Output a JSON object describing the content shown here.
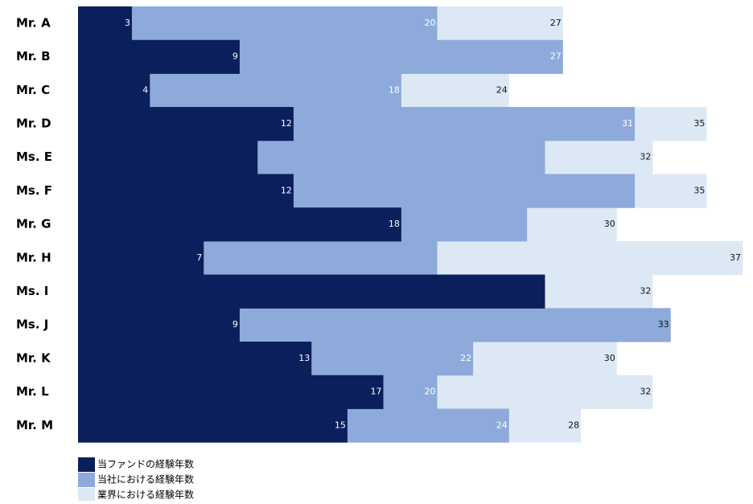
{
  "chart_data": {
    "type": "overlap-bar",
    "categories": [
      "Mr. A",
      "Mr. B",
      "Mr. C",
      "Mr. D",
      "Ms. E",
      "Ms. F",
      "Mr. G",
      "Mr. H",
      "Ms. I",
      "Ms. J",
      "Mr. K",
      "Mr. L",
      "Mr. M"
    ],
    "series": [
      {
        "name": "業界における経験年数",
        "color": "#dde8f5",
        "label_color": "#111111",
        "values": [
          27,
          27,
          24,
          35,
          32,
          35,
          30,
          37,
          32,
          33,
          30,
          32,
          28
        ],
        "value_labels": [
          "27",
          null,
          "24",
          "35",
          "32",
          "35",
          "30",
          "37",
          "32",
          "33",
          "30",
          "32",
          "28"
        ]
      },
      {
        "name": "当社における経験年数",
        "color": "#8eaadb",
        "label_color": "#ffffff",
        "values": [
          20,
          27,
          18,
          31,
          26,
          31,
          25,
          20,
          26,
          33,
          22,
          20,
          24
        ],
        "value_labels": [
          "20",
          "27",
          "18",
          "31",
          null,
          null,
          null,
          null,
          null,
          null,
          "22",
          "20",
          "24"
        ]
      },
      {
        "name": "当ファンドの経験年数",
        "color": "#0a1f5c",
        "label_color": "#ffffff",
        "values": [
          3,
          9,
          4,
          12,
          10,
          12,
          18,
          7,
          26,
          9,
          13,
          17,
          15
        ],
        "value_labels": [
          "3",
          "9",
          "4",
          "12",
          null,
          "12",
          "18",
          "7",
          null,
          "9",
          "13",
          "17",
          "15"
        ]
      }
    ],
    "xlim": [
      0,
      37
    ]
  }
}
